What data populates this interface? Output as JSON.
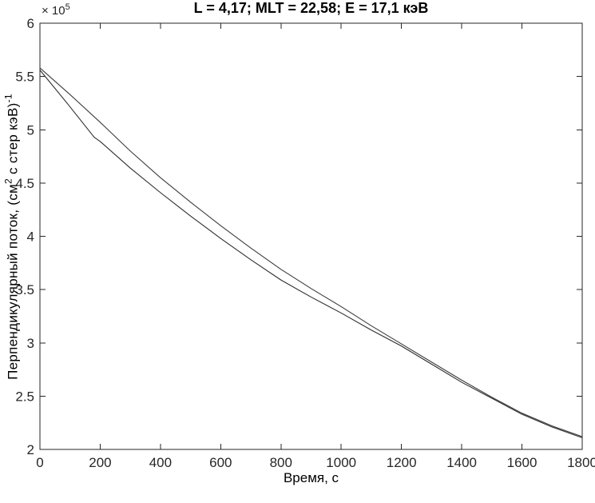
{
  "figure": {
    "offset_base": "× 10",
    "offset_exponent": "5",
    "ylabel_part1": "Перпендикулярный поток, (см",
    "ylabel_sup1": "2",
    "ylabel_part2": " с стер кэВ)",
    "ylabel_sup2": "-1"
  },
  "chart_data": {
    "type": "line",
    "title": "L = 4,17; MLT = 22,58; E = 17,1 кэВ",
    "xlabel": "Время, с",
    "ylabel": "Перпендикулярный поток, (см² с стер кэВ)⁻¹",
    "axis_offset_text": "× 10⁵",
    "y_unit_multiplier": 100000,
    "xlim": [
      0,
      1800
    ],
    "ylim_e5": [
      2,
      6
    ],
    "x_ticks": [
      0,
      200,
      400,
      600,
      800,
      1000,
      1200,
      1400,
      1600,
      1800
    ],
    "x_tick_labels": [
      "0",
      "200",
      "400",
      "600",
      "800",
      "1000",
      "1200",
      "1400",
      "1600",
      "1800"
    ],
    "y_ticks_e5": [
      2,
      2.5,
      3,
      3.5,
      4,
      4.5,
      5,
      5.5,
      6
    ],
    "y_tick_labels": [
      "2",
      "2.5",
      "3",
      "3.5",
      "4",
      "4.5",
      "5",
      "5.5",
      "6"
    ],
    "grid": false,
    "legend": null,
    "axis_color": "#262626",
    "background_color": "#ffffff",
    "series": [
      {
        "name": "upper-smooth-curve",
        "color": "#3c3c3c",
        "x": [
          0,
          100,
          200,
          300,
          400,
          500,
          600,
          700,
          800,
          900,
          1000,
          1100,
          1200,
          1300,
          1400,
          1500,
          1600,
          1700,
          1800
        ],
        "y_e5": [
          5.58,
          5.33,
          5.07,
          4.8,
          4.55,
          4.32,
          4.1,
          3.89,
          3.69,
          3.51,
          3.34,
          3.16,
          2.99,
          2.82,
          2.65,
          2.49,
          2.34,
          2.22,
          2.12
        ]
      },
      {
        "name": "lower-kinked-curve",
        "color": "#2e2e2e",
        "x": [
          0,
          90,
          180,
          200,
          300,
          400,
          500,
          600,
          700,
          800,
          900,
          1000,
          1100,
          1200,
          1300,
          1400,
          1500,
          1600,
          1700,
          1800
        ],
        "y_e5": [
          5.56,
          5.25,
          4.93,
          4.89,
          4.64,
          4.41,
          4.19,
          3.98,
          3.78,
          3.59,
          3.43,
          3.28,
          3.12,
          2.97,
          2.8,
          2.63,
          2.48,
          2.33,
          2.21,
          2.11
        ]
      }
    ]
  }
}
